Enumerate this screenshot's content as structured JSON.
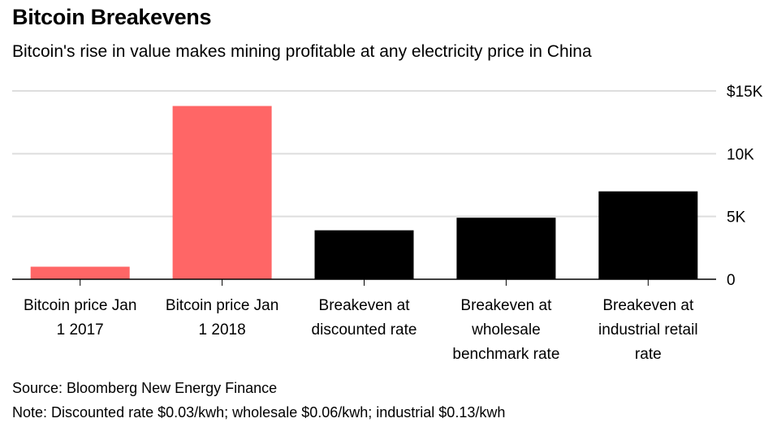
{
  "title": "Bitcoin Breakevens",
  "subtitle": "Bitcoin's rise in value makes mining profitable at any electricity price in China",
  "source": "Source: Bloomberg New Energy Finance",
  "note": "Note: Discounted rate $0.03/kwh; wholesale $0.06/kwh; industrial $0.13/kwh",
  "colors": {
    "highlight": "#ff6666",
    "default": "#000000",
    "grid": "#dddddd"
  },
  "chart_data": {
    "type": "bar",
    "title": "Bitcoin Breakevens",
    "subtitle": "Bitcoin's rise in value makes mining profitable at any electricity price in China",
    "categories": [
      [
        "Bitcoin price Jan",
        "1 2017"
      ],
      [
        "Bitcoin price Jan",
        "1 2018"
      ],
      [
        "Breakeven at",
        "discounted rate"
      ],
      [
        "Breakeven at",
        "wholesale",
        "benchmark rate"
      ],
      [
        "Breakeven at",
        "industrial retail",
        "rate"
      ]
    ],
    "values": [
      1000,
      13800,
      3900,
      4900,
      7000
    ],
    "bar_colors": [
      "#ff6666",
      "#ff6666",
      "#000000",
      "#000000",
      "#000000"
    ],
    "ylim": [
      0,
      15000
    ],
    "yticks": [
      0,
      5000,
      10000,
      15000
    ],
    "ytick_labels": [
      "0",
      "5K",
      "10K",
      "$15K"
    ],
    "y_axis_position": "right",
    "grid": true,
    "legend": "none"
  }
}
